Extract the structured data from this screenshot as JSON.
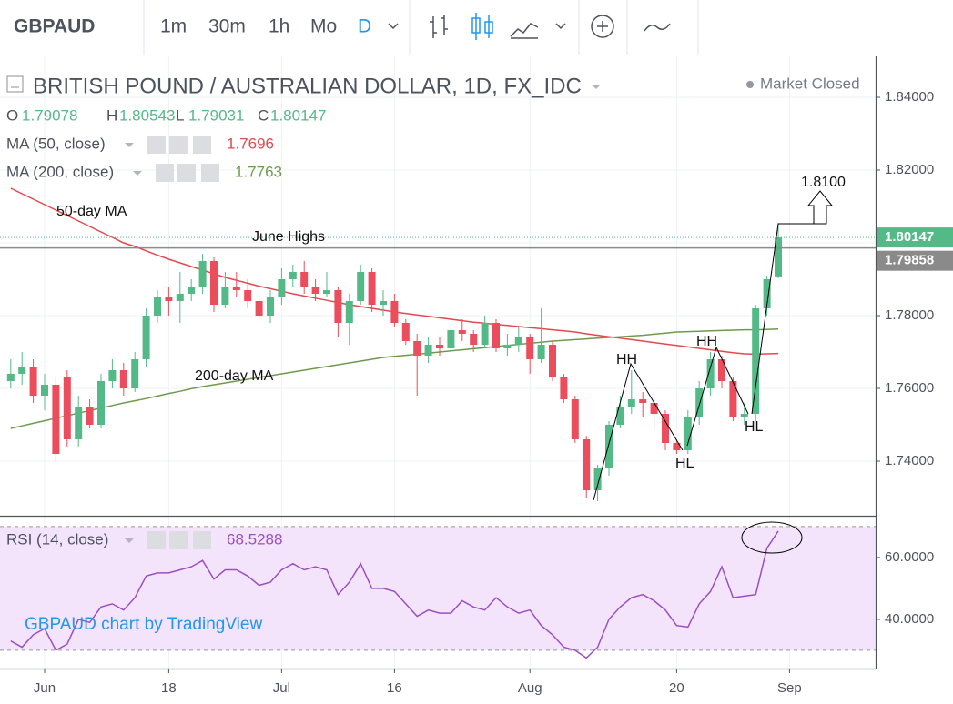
{
  "toolbar": {
    "symbol": "GBPAUD",
    "intervals": [
      "1m",
      "30m",
      "1h",
      "Mo",
      "D"
    ]
  },
  "header": {
    "title": "BRITISH POUND / AUSTRALIAN DOLLAR, 1D, FX_IDC",
    "status": "Market Closed",
    "ohlc_labels": [
      "O",
      "H",
      "L",
      "C"
    ]
  },
  "watermark": "GBPAUD chart by TradingView",
  "chart_data": [
    {
      "type": "candlestick",
      "categories": [
        null,
        null,
        null,
        "Jun",
        null,
        null,
        null,
        null,
        null,
        null,
        null,
        null,
        null,
        null,
        "18",
        null,
        null,
        null,
        null,
        null,
        null,
        null,
        null,
        null,
        "Jul",
        null,
        null,
        null,
        null,
        null,
        null,
        null,
        null,
        null,
        "16",
        null,
        null,
        null,
        null,
        null,
        null,
        null,
        null,
        null,
        null,
        null,
        "Aug",
        null,
        null,
        null,
        null,
        null,
        null,
        null,
        null,
        null,
        null,
        null,
        null,
        "20",
        null,
        null,
        null,
        null,
        null,
        null,
        null,
        null,
        null,
        "Sep",
        null,
        null,
        null,
        null,
        null,
        null,
        null
      ],
      "open": [
        1.762,
        1.764,
        1.766,
        1.758,
        1.761,
        1.763,
        1.746,
        1.755,
        1.75,
        1.762,
        1.765,
        1.76,
        1.768,
        1.78,
        1.785,
        1.784,
        1.786,
        1.788,
        1.795,
        1.783,
        1.788,
        1.787,
        1.784,
        1.78,
        1.785,
        1.79,
        1.792,
        1.788,
        1.786,
        1.787,
        1.778,
        1.784,
        1.792,
        1.783,
        1.784,
        1.778,
        1.773,
        1.769,
        1.772,
        1.771,
        1.776,
        1.775,
        1.772,
        1.778,
        1.771,
        1.772,
        1.774,
        1.768,
        1.772,
        1.763,
        1.757,
        1.746,
        1.732,
        1.738,
        1.75,
        1.755,
        1.757,
        1.756,
        1.753,
        1.745,
        1.743,
        1.752,
        1.76,
        1.768,
        1.762,
        1.752,
        1.753,
        1.782,
        1.79078,
        null,
        null,
        null,
        null,
        null,
        null,
        null,
        null
      ],
      "high": [
        1.768,
        1.77,
        1.768,
        1.764,
        1.763,
        1.765,
        1.758,
        1.757,
        1.764,
        1.768,
        1.767,
        1.77,
        1.782,
        1.787,
        1.788,
        1.792,
        1.79,
        1.797,
        1.796,
        1.792,
        1.792,
        1.79,
        1.786,
        1.787,
        1.793,
        1.794,
        1.795,
        1.79,
        1.792,
        1.788,
        1.786,
        1.794,
        1.793,
        1.787,
        1.786,
        1.779,
        1.775,
        1.774,
        1.774,
        1.778,
        1.779,
        1.776,
        1.78,
        1.779,
        1.775,
        1.777,
        1.775,
        1.782,
        1.773,
        1.764,
        1.758,
        1.747,
        1.739,
        1.751,
        1.758,
        1.765,
        1.759,
        1.757,
        1.754,
        1.746,
        1.754,
        1.762,
        1.77,
        1.769,
        1.763,
        1.756,
        1.783,
        1.791,
        1.80543,
        null,
        null,
        null,
        null,
        null,
        null,
        null,
        null
      ],
      "low": [
        1.76,
        1.761,
        1.756,
        1.754,
        1.74,
        1.744,
        1.744,
        1.749,
        1.749,
        1.76,
        1.758,
        1.759,
        1.766,
        1.778,
        1.78,
        1.778,
        1.784,
        1.786,
        1.781,
        1.782,
        1.785,
        1.782,
        1.779,
        1.778,
        1.783,
        1.788,
        1.786,
        1.784,
        1.785,
        1.774,
        1.772,
        1.783,
        1.781,
        1.78,
        1.777,
        1.772,
        1.758,
        1.767,
        1.769,
        1.77,
        1.773,
        1.77,
        1.771,
        1.77,
        1.769,
        1.77,
        1.764,
        1.767,
        1.762,
        1.756,
        1.745,
        1.73,
        1.729,
        1.736,
        1.749,
        1.753,
        1.752,
        1.749,
        1.743,
        1.742,
        1.742,
        1.75,
        1.758,
        1.76,
        1.751,
        1.75,
        1.751,
        1.78,
        1.79031,
        null,
        null,
        null,
        null,
        null,
        null,
        null,
        null
      ],
      "close": [
        1.764,
        1.766,
        1.758,
        1.761,
        1.742,
        1.746,
        1.755,
        1.75,
        1.762,
        1.765,
        1.76,
        1.768,
        1.78,
        1.785,
        1.784,
        1.786,
        1.788,
        1.795,
        1.783,
        1.788,
        1.787,
        1.784,
        1.78,
        1.785,
        1.79,
        1.792,
        1.788,
        1.786,
        1.787,
        1.778,
        1.784,
        1.792,
        1.783,
        1.784,
        1.778,
        1.773,
        1.769,
        1.772,
        1.771,
        1.776,
        1.775,
        1.772,
        1.778,
        1.771,
        1.772,
        1.774,
        1.768,
        1.772,
        1.763,
        1.757,
        1.746,
        1.732,
        1.738,
        1.75,
        1.755,
        1.757,
        1.756,
        1.753,
        1.745,
        1.743,
        1.752,
        1.76,
        1.768,
        1.762,
        1.752,
        1.753,
        1.782,
        1.79,
        1.80147,
        null,
        null,
        null,
        null,
        null,
        null,
        null,
        null
      ],
      "up_color": "#53b987",
      "down_color": "#eb4d5c",
      "series": [
        {
          "name": "MA (50, close)",
          "color": "#e5484f",
          "values": [
            1.815,
            1.8135,
            1.812,
            1.8105,
            1.809,
            1.8075,
            1.806,
            1.8045,
            1.803,
            1.8015,
            1.8,
            1.799,
            1.7978,
            1.7966,
            1.7955,
            1.7945,
            1.7935,
            1.7925,
            1.7915,
            1.7905,
            1.7897,
            1.7889,
            1.7881,
            1.7874,
            1.7867,
            1.786,
            1.7854,
            1.7848,
            1.7842,
            1.7836,
            1.783,
            1.7825,
            1.782,
            1.7815,
            1.781,
            1.7806,
            1.7802,
            1.7798,
            1.7794,
            1.779,
            1.7786,
            1.7782,
            1.7779,
            1.7776,
            1.7773,
            1.777,
            1.7767,
            1.7764,
            1.7761,
            1.7758,
            1.7755,
            1.775,
            1.7746,
            1.7742,
            1.7738,
            1.7734,
            1.773,
            1.7726,
            1.7722,
            1.7718,
            1.7714,
            1.771,
            1.7706,
            1.7702,
            1.7698,
            1.7695,
            1.7694,
            1.7695,
            1.7696,
            null,
            null,
            null,
            null,
            null,
            null,
            null,
            null
          ]
        },
        {
          "name": "MA (200, close)",
          "color": "#6f9a4e",
          "values": [
            1.749,
            1.7497,
            1.7504,
            1.7511,
            1.7518,
            1.7525,
            1.7532,
            1.7539,
            1.7546,
            1.7553,
            1.756,
            1.7566,
            1.7572,
            1.7579,
            1.7586,
            1.7592,
            1.7599,
            1.7605,
            1.761,
            1.7615,
            1.762,
            1.7625,
            1.763,
            1.7635,
            1.764,
            1.7645,
            1.765,
            1.7655,
            1.766,
            1.7665,
            1.767,
            1.7675,
            1.768,
            1.7685,
            1.7688,
            1.7691,
            1.7694,
            1.7697,
            1.77,
            1.7703,
            1.7706,
            1.7709,
            1.7712,
            1.7715,
            1.7718,
            1.7721,
            1.7724,
            1.7727,
            1.773,
            1.7732,
            1.7734,
            1.7736,
            1.7738,
            1.774,
            1.7742,
            1.7744,
            1.7746,
            1.7749,
            1.7752,
            1.7755,
            1.7756,
            1.7757,
            1.7758,
            1.7759,
            1.776,
            1.7761,
            1.7761,
            1.7762,
            1.7763,
            null,
            null,
            null,
            null,
            null,
            null,
            null,
            null
          ]
        }
      ],
      "levels": [
        {
          "label": "June Highs",
          "value": 1.79858,
          "color": "#8a8a8a"
        }
      ],
      "annotations": [
        "50-day MA",
        "200-day MA",
        "1.8100",
        "HH",
        "HH",
        "HL",
        "HL"
      ],
      "ylim": [
        1.725,
        1.85125
      ],
      "yticks": [
        {
          "value": 1.74,
          "label": "1.74000"
        },
        {
          "value": 1.76,
          "label": "1.76000"
        },
        {
          "value": 1.78,
          "label": "1.78000"
        },
        {
          "value": 1.8,
          "label": "1.80000"
        },
        {
          "value": 1.82,
          "label": "1.82000"
        },
        {
          "value": 1.84,
          "label": "1.84000"
        }
      ],
      "grid": true
    },
    {
      "type": "line",
      "series": [
        {
          "name": "RSI (14, close)",
          "color": "#9b4fc0",
          "values": [
            33,
            31,
            35,
            37,
            30,
            32,
            40,
            39,
            44,
            45,
            43,
            47,
            54,
            55,
            55,
            56,
            57,
            59,
            53,
            56,
            56,
            54,
            51,
            52,
            56,
            58,
            56,
            57,
            56,
            48,
            52,
            58,
            50,
            50,
            49,
            45,
            41,
            43,
            42,
            42,
            46,
            44,
            43,
            47,
            44,
            42,
            43,
            38,
            35,
            31,
            30,
            27.5,
            31,
            40,
            44,
            47,
            48,
            46,
            43,
            38,
            37.5,
            45,
            49,
            57,
            47,
            47.5,
            48,
            63,
            68.5288,
            null,
            null,
            null,
            null,
            null,
            null,
            null,
            null
          ]
        }
      ],
      "band": [
        30,
        70
      ],
      "band_color": "#f3e4fc",
      "ylim": [
        24.1,
        73.2
      ],
      "yticks": [
        {
          "value": 40,
          "label": "40.0000"
        },
        {
          "value": 60,
          "label": "60.0000"
        }
      ],
      "grid": true
    }
  ]
}
